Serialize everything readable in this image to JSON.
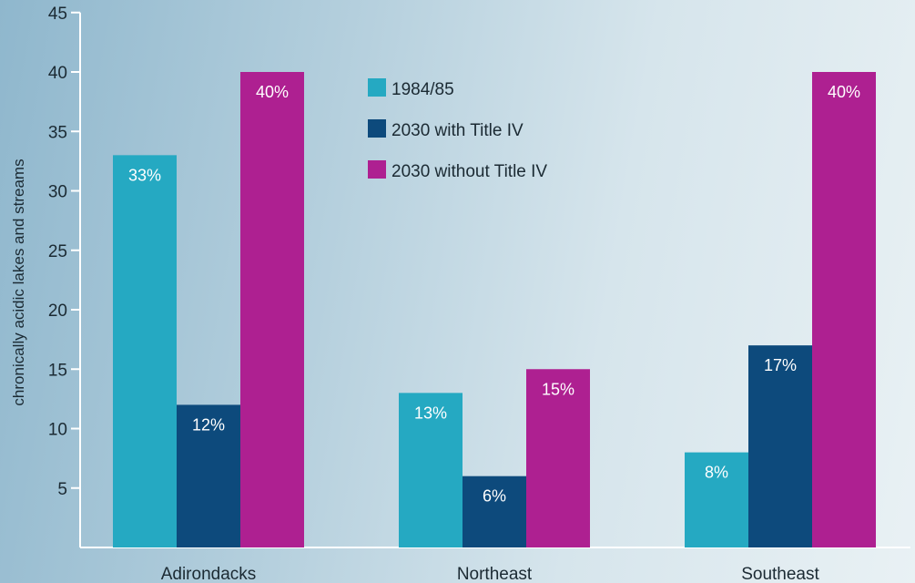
{
  "chart_data": {
    "type": "bar",
    "title": "",
    "xlabel": "",
    "ylabel": "chronically acidic lakes and streams",
    "ylim": [
      0,
      45
    ],
    "yticks": [
      5,
      10,
      15,
      20,
      25,
      30,
      35,
      40,
      45
    ],
    "categories": [
      "Adirondacks",
      "Northeast",
      "Southeast"
    ],
    "series": [
      {
        "name": "1984/85",
        "color": "#25a9c2",
        "values": [
          33,
          13,
          8
        ],
        "labels": [
          "33%",
          "13%",
          "8%"
        ]
      },
      {
        "name": "2030 with Title IV",
        "color": "#0d4a7c",
        "values": [
          12,
          6,
          17
        ],
        "labels": [
          "12%",
          "6%",
          "17%"
        ]
      },
      {
        "name": "2030 without Title IV",
        "color": "#ae2091",
        "values": [
          40,
          15,
          40
        ],
        "labels": [
          "40%",
          "15%",
          "40%"
        ]
      }
    ],
    "legend_position": "top-center",
    "grid": false
  }
}
